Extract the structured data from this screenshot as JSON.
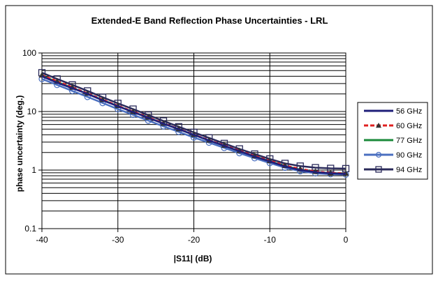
{
  "chart_data": {
    "type": "line",
    "title": "Extended-E Band Reflection Phase Uncertainties - LRL",
    "xlabel": "|S11| (dB)",
    "ylabel": "phase uncertainty (deg.)",
    "xlim": [
      -40,
      0
    ],
    "ylim": [
      0.1,
      100
    ],
    "y_scale": "log",
    "x_ticks": [
      "-40",
      "-30",
      "-20",
      "-10",
      "0"
    ],
    "y_ticks": [
      "0.1",
      "1",
      "10",
      "100"
    ],
    "grid": "horizontal",
    "legend_position": "right",
    "x": [
      -40,
      -38,
      -36,
      -34,
      -32,
      -30,
      -28,
      -26,
      -24,
      -22,
      -20,
      -18,
      -16,
      -14,
      -12,
      -10,
      -8,
      -6,
      -4,
      -2,
      0
    ],
    "series": [
      {
        "name": "56 GHz",
        "color": "#1f1f7a",
        "marker": "none",
        "style": "solid",
        "values": [
          40,
          31,
          25,
          20,
          15.5,
          12.3,
          9.8,
          7.8,
          6.2,
          5.0,
          4.0,
          3.2,
          2.6,
          2.1,
          1.7,
          1.4,
          1.15,
          1.0,
          0.92,
          0.88,
          0.86
        ]
      },
      {
        "name": "60 GHz",
        "color": "#e02020",
        "marker": "triangle",
        "style": "dashed",
        "values": [
          42,
          33,
          26,
          20.5,
          16,
          12.6,
          10,
          8.0,
          6.3,
          5.05,
          4.05,
          3.25,
          2.65,
          2.15,
          1.75,
          1.45,
          1.2,
          1.05,
          0.95,
          0.9,
          0.88
        ]
      },
      {
        "name": "77 GHz",
        "color": "#1a8a3a",
        "marker": "none",
        "style": "solid",
        "values": [
          41,
          32,
          25.5,
          20,
          15.8,
          12.4,
          9.9,
          7.9,
          6.25,
          5.0,
          4.0,
          3.2,
          2.6,
          2.1,
          1.72,
          1.42,
          1.18,
          1.02,
          0.93,
          0.89,
          0.87
        ]
      },
      {
        "name": "90 GHz",
        "color": "#4a6fc0",
        "marker": "circle",
        "style": "solid",
        "values": [
          36,
          28.5,
          22.5,
          17.8,
          14,
          11,
          8.8,
          7.0,
          5.6,
          4.5,
          3.6,
          2.95,
          2.4,
          1.95,
          1.6,
          1.32,
          1.1,
          0.96,
          0.88,
          0.85,
          0.84
        ]
      },
      {
        "name": "94 GHz",
        "color": "#2a2a5a",
        "marker": "square",
        "style": "solid",
        "values": [
          46,
          36,
          28.5,
          22.5,
          17.5,
          13.8,
          11,
          8.7,
          6.9,
          5.5,
          4.4,
          3.55,
          2.85,
          2.3,
          1.88,
          1.55,
          1.3,
          1.17,
          1.1,
          1.07,
          1.06
        ]
      }
    ]
  }
}
